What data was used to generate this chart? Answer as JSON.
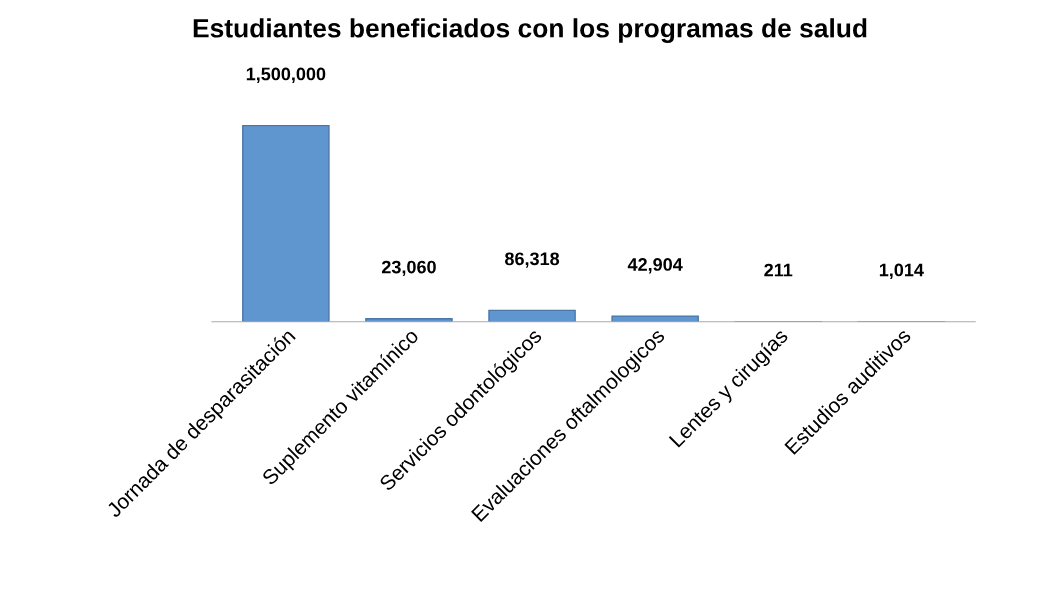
{
  "chart_data": {
    "type": "bar",
    "title": "Estudiantes beneficiados con los programas de salud",
    "categories": [
      "Jornada de desparasitación",
      "Suplemento vitamínico",
      "Servicios odontológicos",
      "Evaluaciones oftalmologicos",
      "Lentes y cirugías",
      "Estudios auditivos"
    ],
    "values": [
      1500000,
      23060,
      86318,
      42904,
      211,
      1014
    ],
    "value_labels": [
      "1,500,000",
      "23,060",
      "86,318",
      "42,904",
      "211",
      "1,014"
    ],
    "color": "#5f96d0",
    "grid": false
  }
}
